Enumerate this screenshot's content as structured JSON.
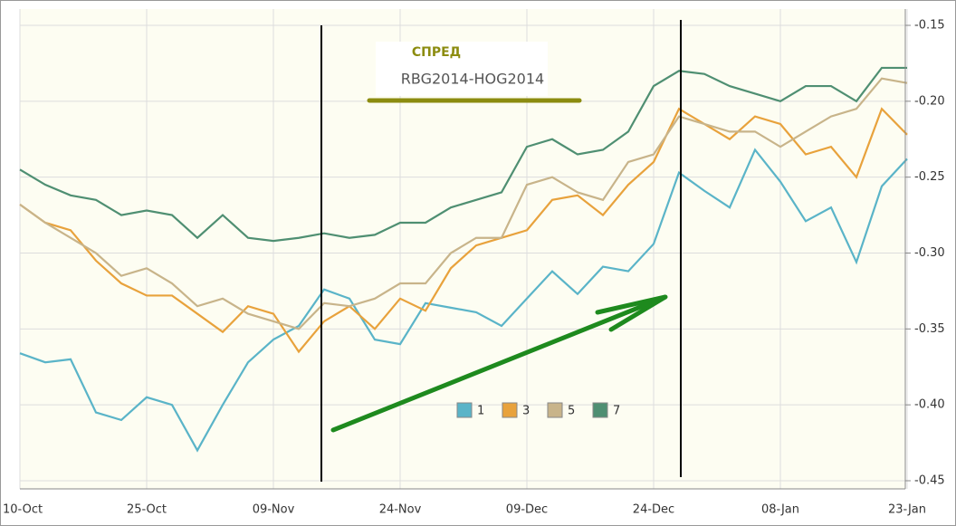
{
  "chart_data": {
    "type": "line",
    "annotations": [
      "СПРЕД",
      "RBG2014-HOG2014"
    ],
    "categories": [
      "10-Oct",
      null,
      null,
      null,
      null,
      "25-Oct",
      null,
      null,
      null,
      null,
      "09-Nov",
      null,
      null,
      null,
      null,
      "24-Nov",
      null,
      null,
      null,
      null,
      "09-Dec",
      null,
      null,
      null,
      null,
      "24-Dec",
      null,
      null,
      null,
      null,
      "08-Jan",
      null,
      null,
      null,
      null,
      "23-Jan"
    ],
    "series": [
      {
        "name": "1",
        "color": "#5ab4c8",
        "values": [
          -0.366,
          -0.372,
          -0.37,
          -0.405,
          -0.41,
          -0.395,
          -0.4,
          -0.43,
          -0.4,
          -0.372,
          -0.357,
          -0.348,
          -0.324,
          -0.33,
          -0.357,
          -0.36,
          -0.333,
          -0.336,
          -0.339,
          -0.348,
          -0.33,
          -0.312,
          -0.327,
          -0.309,
          -0.312,
          -0.294,
          -0.247,
          -0.259,
          -0.27,
          -0.232,
          -0.253,
          -0.279,
          -0.27,
          -0.306,
          -0.256,
          -0.238
        ]
      },
      {
        "name": "3",
        "color": "#e8a23c",
        "values": [
          -0.268,
          -0.28,
          -0.285,
          -0.305,
          -0.32,
          -0.328,
          -0.328,
          -0.34,
          -0.352,
          -0.335,
          -0.34,
          -0.365,
          -0.345,
          -0.335,
          -0.35,
          -0.33,
          -0.338,
          -0.31,
          -0.295,
          -0.29,
          -0.285,
          -0.265,
          -0.262,
          -0.275,
          -0.255,
          -0.24,
          -0.205,
          -0.215,
          -0.225,
          -0.21,
          -0.215,
          -0.235,
          -0.23,
          -0.25,
          -0.205,
          -0.222
        ]
      },
      {
        "name": "5",
        "color": "#c8b48a",
        "values": [
          -0.268,
          -0.28,
          -0.29,
          -0.3,
          -0.315,
          -0.31,
          -0.32,
          -0.335,
          -0.33,
          -0.34,
          -0.345,
          -0.35,
          -0.333,
          -0.335,
          -0.33,
          -0.32,
          -0.32,
          -0.3,
          -0.29,
          -0.29,
          -0.255,
          -0.25,
          -0.26,
          -0.265,
          -0.24,
          -0.235,
          -0.21,
          -0.215,
          -0.22,
          -0.22,
          -0.23,
          -0.22,
          -0.21,
          -0.205,
          -0.185,
          -0.188
        ]
      },
      {
        "name": "7",
        "color": "#4f8f72",
        "values": [
          -0.245,
          -0.255,
          -0.262,
          -0.265,
          -0.275,
          -0.272,
          -0.275,
          -0.29,
          -0.275,
          -0.29,
          -0.292,
          -0.29,
          -0.287,
          -0.29,
          -0.288,
          -0.28,
          -0.28,
          -0.27,
          -0.265,
          -0.26,
          -0.23,
          -0.225,
          -0.235,
          -0.232,
          -0.22,
          -0.19,
          -0.18,
          -0.182,
          -0.19,
          -0.195,
          -0.2,
          -0.19,
          -0.19,
          -0.2,
          -0.178,
          -0.178
        ]
      }
    ],
    "ylim": [
      -0.45,
      -0.15
    ],
    "yticks": [
      -0.15,
      {
        "value": -0.2,
        "label": "-0.20"
      },
      -0.25,
      {
        "value": -0.3,
        "label": "-0.30"
      },
      -0.35,
      {
        "value": -0.4,
        "label": "-0.40"
      },
      -0.45
    ],
    "grid": true,
    "legend_position": "center"
  }
}
